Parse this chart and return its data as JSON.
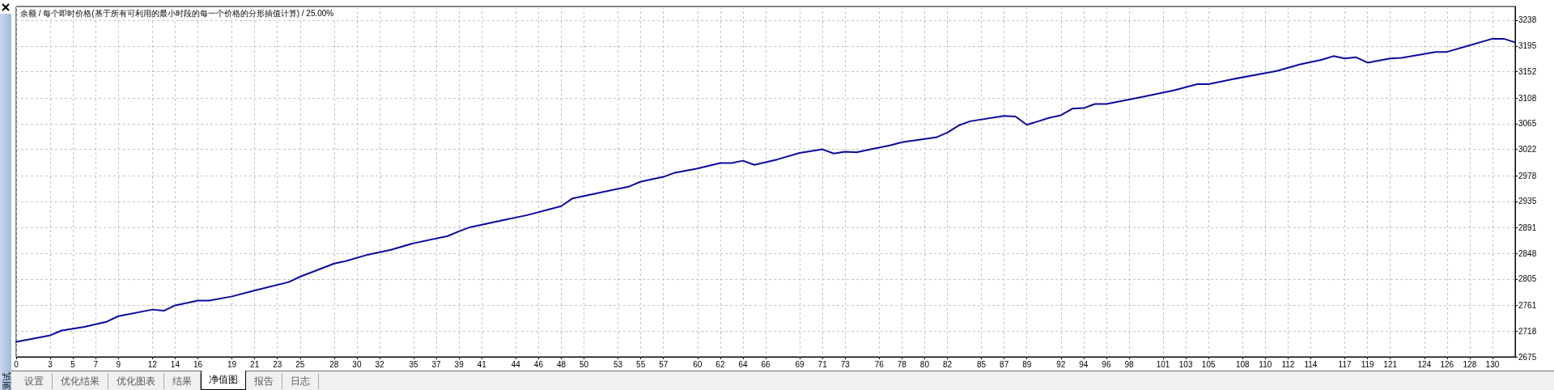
{
  "chart_data": {
    "type": "line",
    "title": "余额 / 每个即时价格(基于所有可利用的最小时段的每一个价格的分形插值计算) / 25.00%",
    "x": [
      0,
      3,
      4,
      6,
      8,
      9,
      12,
      13,
      14,
      16,
      17,
      19,
      21,
      24,
      25,
      28,
      29,
      31,
      33,
      35,
      38,
      39,
      40,
      43,
      45,
      47,
      48,
      49,
      51,
      54,
      55,
      57,
      58,
      60,
      62,
      63,
      64,
      65,
      67,
      69,
      71,
      72,
      73,
      74,
      75,
      77,
      78,
      81,
      82,
      83,
      84,
      87,
      88,
      89,
      90,
      91,
      92,
      93,
      94,
      95,
      96,
      99,
      102,
      104,
      105,
      107,
      111,
      113,
      115,
      116,
      117,
      118,
      119,
      121,
      122,
      125,
      126,
      128,
      130,
      131,
      132
    ],
    "values": [
      2700,
      2711,
      2719,
      2725,
      2734,
      2743,
      2754,
      2752,
      2761,
      2769,
      2769,
      2776,
      2786,
      2800,
      2809,
      2831,
      2835,
      2846,
      2854,
      2865,
      2877,
      2885,
      2892,
      2904,
      2912,
      2922,
      2927,
      2940,
      2948,
      2960,
      2968,
      2976,
      2983,
      2990,
      2999,
      2999,
      3003,
      2996,
      3005,
      3016,
      3022,
      3015,
      3018,
      3017,
      3021,
      3029,
      3034,
      3042,
      3050,
      3062,
      3069,
      3078,
      3077,
      3063,
      3069,
      3075,
      3079,
      3090,
      3091,
      3098,
      3098,
      3109,
      3121,
      3131,
      3131,
      3139,
      3153,
      3164,
      3172,
      3178,
      3174,
      3176,
      3167,
      3174,
      3175,
      3185,
      3185,
      3196,
      3207,
      3207,
      3201
    ],
    "color": "#0a0aa0",
    "xlim": [
      0,
      132
    ],
    "xticks": [
      0,
      3,
      5,
      7,
      9,
      12,
      14,
      16,
      19,
      21,
      23,
      25,
      28,
      30,
      32,
      35,
      37,
      39,
      41,
      44,
      46,
      48,
      50,
      53,
      55,
      57,
      60,
      62,
      64,
      66,
      69,
      71,
      73,
      76,
      78,
      80,
      82,
      85,
      87,
      89,
      92,
      94,
      96,
      98,
      101,
      103,
      105,
      108,
      110,
      112,
      114,
      117,
      119,
      121,
      124,
      126,
      128,
      130
    ],
    "ylim": [
      2675,
      3261
    ],
    "yticks": [
      2675,
      2718,
      2761,
      2805,
      2848,
      2891,
      2935,
      2978,
      3022,
      3065,
      3108,
      3152,
      3195,
      3238
    ],
    "grid": true,
    "marker": "none",
    "line_style": "solid",
    "annotations": [
      "测试",
      "设置",
      "优化结果",
      "优化图表",
      "结果",
      "净值图",
      "报告",
      "日志"
    ]
  }
}
